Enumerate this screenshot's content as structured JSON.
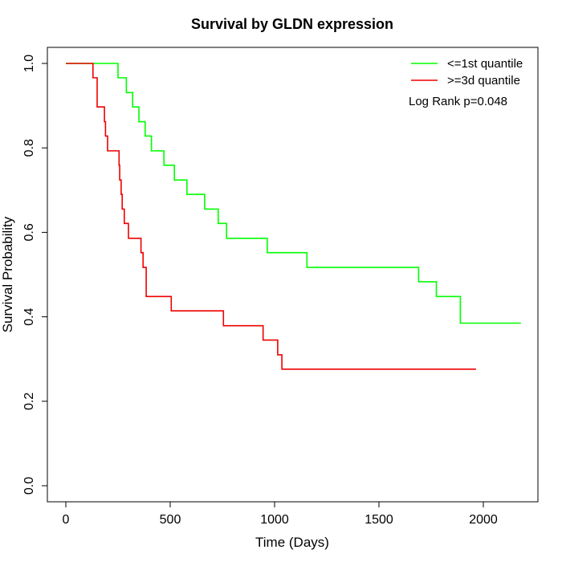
{
  "chart_data": {
    "type": "line",
    "title": "Survival by GLDN expression",
    "xlabel": "Time (Days)",
    "ylabel": "Survival Probability",
    "xlim": [
      0,
      2200
    ],
    "ylim": [
      0,
      1.0
    ],
    "xticks": [
      0,
      500,
      1000,
      1500,
      2000
    ],
    "xtick_labels": [
      "0",
      "500",
      "1000",
      "1500",
      "2000"
    ],
    "yticks": [
      0,
      0.2,
      0.4,
      0.6,
      0.8,
      1.0
    ],
    "ytick_labels": [
      "0.0",
      "0.2",
      "0.4",
      "0.6",
      "0.8",
      "1.0"
    ],
    "grid": false,
    "legend_position": "top-right",
    "annotation": "Log Rank p=0.048",
    "series": [
      {
        "name": "<=1st quantile",
        "color": "#00ff00",
        "step": true,
        "x": [
          0,
          250,
          290,
          320,
          350,
          380,
          410,
          470,
          520,
          580,
          665,
          730,
          770,
          965,
          1155,
          1690,
          1775,
          1890,
          2180
        ],
        "y": [
          1.0,
          0.966,
          0.931,
          0.897,
          0.862,
          0.828,
          0.793,
          0.759,
          0.724,
          0.69,
          0.655,
          0.621,
          0.586,
          0.552,
          0.517,
          0.483,
          0.448,
          0.385,
          0.385
        ]
      },
      {
        "name": ">=3d quantile",
        "color": "#ee0000",
        "step": true,
        "x": [
          0,
          130,
          150,
          185,
          190,
          200,
          255,
          258,
          265,
          270,
          280,
          300,
          360,
          370,
          385,
          505,
          755,
          945,
          1015,
          1035,
          1965
        ],
        "y": [
          1.0,
          0.966,
          0.897,
          0.862,
          0.828,
          0.793,
          0.759,
          0.724,
          0.69,
          0.655,
          0.621,
          0.586,
          0.552,
          0.517,
          0.448,
          0.414,
          0.379,
          0.345,
          0.31,
          0.276,
          0.276
        ]
      }
    ]
  }
}
